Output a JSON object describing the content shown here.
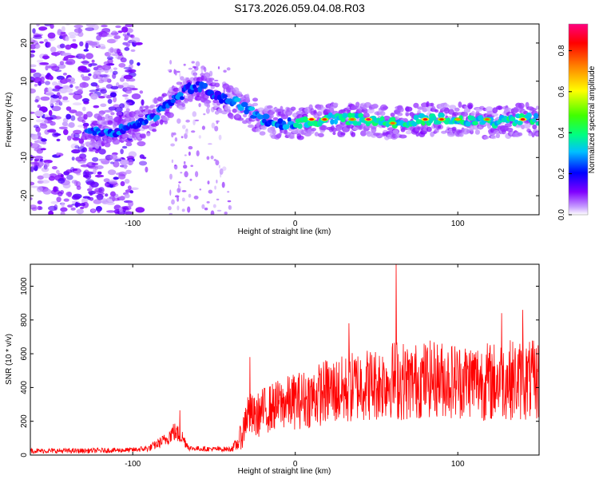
{
  "page": {
    "title": "S173.2026.059.04.08.R03"
  },
  "chart_data": [
    {
      "type": "heatmap",
      "xlabel": "Height of straight line (km)",
      "ylabel": "Frequency (Hz)",
      "xlim": [
        -163,
        150
      ],
      "ylim": [
        -25,
        25
      ],
      "xticks": [
        -100,
        0,
        100
      ],
      "yticks": [
        -20,
        -10,
        0,
        10,
        20
      ],
      "colorbar": {
        "label": "Normalized spectral amplitude",
        "range": [
          0,
          0.93
        ],
        "ticks": [
          "0.0",
          "0.2",
          "0.4",
          "0.6",
          "0.8"
        ],
        "colormap": [
          "#ffffff",
          "#8000ff",
          "#0000ff",
          "#00c0ff",
          "#00ff80",
          "#40ff00",
          "#ffff00",
          "#ff8000",
          "#ff0000",
          "#ff0080"
        ]
      },
      "ridge": {
        "x": [
          -125,
          -110,
          -100,
          -90,
          -80,
          -72,
          -65,
          -58,
          -50,
          -42,
          -35,
          -28,
          -20,
          -10,
          0,
          20,
          40,
          60,
          80,
          100,
          120,
          140,
          150
        ],
        "y": [
          -3,
          -3,
          -2,
          0,
          3,
          6,
          8,
          9,
          6,
          5,
          4,
          2,
          0,
          -1,
          -1,
          0,
          0,
          -1,
          0,
          0,
          -1,
          0,
          0
        ]
      },
      "peaks": [
        {
          "x": 10,
          "y": 0,
          "amp": 0.85
        },
        {
          "x": 18,
          "y": 0,
          "amp": 0.8
        },
        {
          "x": 35,
          "y": 0,
          "amp": 0.75
        },
        {
          "x": 45,
          "y": 0,
          "amp": 0.9
        },
        {
          "x": 60,
          "y": -1,
          "amp": 0.75
        },
        {
          "x": 80,
          "y": 0,
          "amp": 0.85
        },
        {
          "x": 90,
          "y": 0,
          "amp": 0.8
        },
        {
          "x": 100,
          "y": 0,
          "amp": 0.7
        },
        {
          "x": 118,
          "y": 0,
          "amp": 0.75
        },
        {
          "x": 140,
          "y": 0,
          "amp": 0.85
        }
      ]
    },
    {
      "type": "line",
      "xlabel": "Height of straight line (km)",
      "ylabel": "SNR (10 * v/v)",
      "xlim": [
        -163,
        150
      ],
      "ylim": [
        0,
        1130
      ],
      "xticks": [
        -100,
        0,
        100
      ],
      "yticks": [
        0,
        200,
        400,
        600,
        800,
        1000
      ],
      "series": [
        {
          "color": "#ff0000",
          "envelope_x": [
            -163,
            -130,
            -100,
            -90,
            -80,
            -75,
            -70,
            -65,
            -50,
            -40,
            -36,
            -32,
            -30,
            -25,
            -20,
            -10,
            0,
            10,
            20,
            30,
            40,
            50,
            60,
            62,
            70,
            80,
            90,
            100,
            110,
            120,
            130,
            140,
            150
          ],
          "envelope_mean": [
            25,
            25,
            30,
            40,
            90,
            140,
            110,
            40,
            35,
            35,
            60,
            140,
            250,
            220,
            260,
            300,
            320,
            340,
            380,
            380,
            420,
            420,
            450,
            450,
            430,
            450,
            450,
            440,
            450,
            430,
            450,
            440,
            440
          ],
          "envelope_spread": [
            15,
            15,
            15,
            20,
            40,
            60,
            50,
            15,
            15,
            15,
            40,
            100,
            140,
            130,
            140,
            150,
            170,
            180,
            200,
            210,
            220,
            220,
            230,
            250,
            230,
            230,
            230,
            230,
            230,
            240,
            240,
            240,
            240
          ],
          "spikes": [
            {
              "x": 62,
              "y": 1130
            },
            {
              "x": -71,
              "y": 265
            },
            {
              "x": -28,
              "y": 580
            },
            {
              "x": 33,
              "y": 780
            },
            {
              "x": 127,
              "y": 840
            },
            {
              "x": 140,
              "y": 860
            }
          ]
        }
      ]
    }
  ]
}
